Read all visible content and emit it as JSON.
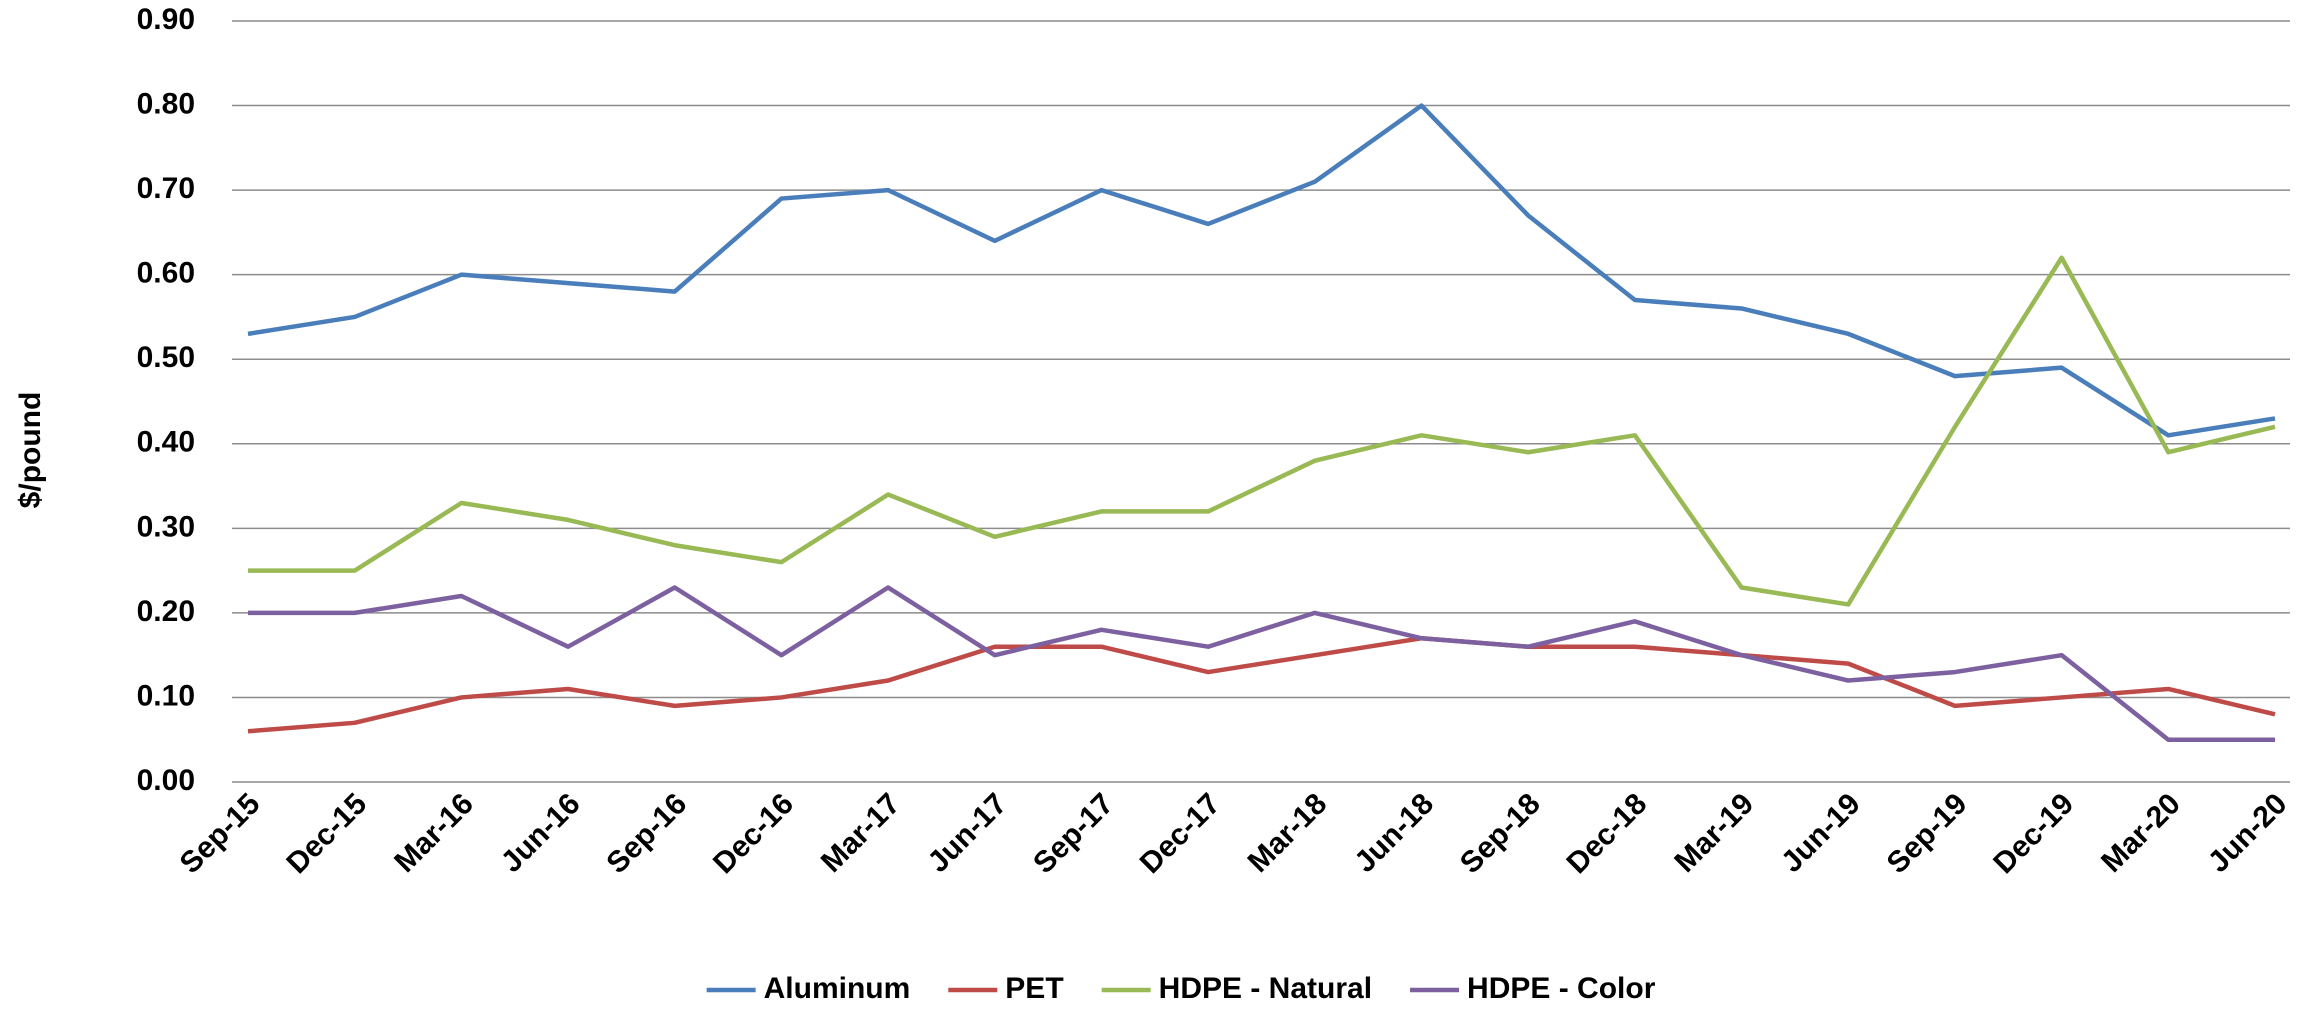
{
  "chart_data": {
    "type": "line",
    "y_label": "$/pound",
    "categories": [
      "Sep-15",
      "Dec-15",
      "Mar-16",
      "Jun-16",
      "Sep-16",
      "Dec-16",
      "Mar-17",
      "Jun-17",
      "Sep-17",
      "Dec-17",
      "Mar-18",
      "Jun-18",
      "Sep-18",
      "Dec-18",
      "Mar-19",
      "Jun-19",
      "Sep-19",
      "Dec-19",
      "Mar-20",
      "Jun-20"
    ],
    "series": [
      {
        "name": "Aluminum",
        "color": "#4a7ebb",
        "values": [
          0.53,
          0.55,
          0.6,
          0.59,
          0.58,
          0.69,
          0.7,
          0.64,
          0.7,
          0.66,
          0.71,
          0.8,
          0.67,
          0.57,
          0.56,
          0.53,
          0.48,
          0.49,
          0.41,
          0.43
        ]
      },
      {
        "name": "PET",
        "color": "#be4b48",
        "values": [
          0.06,
          0.07,
          0.1,
          0.11,
          0.09,
          0.1,
          0.12,
          0.16,
          0.16,
          0.13,
          0.15,
          0.17,
          0.16,
          0.16,
          0.15,
          0.14,
          0.09,
          0.1,
          0.11,
          0.08
        ]
      },
      {
        "name": "HDPE - Natural",
        "color": "#98b954",
        "values": [
          0.25,
          0.25,
          0.33,
          0.31,
          0.28,
          0.26,
          0.34,
          0.29,
          0.32,
          0.32,
          0.38,
          0.41,
          0.39,
          0.41,
          0.23,
          0.21,
          0.42,
          0.62,
          0.39,
          0.42
        ]
      },
      {
        "name": "HDPE - Color",
        "color": "#7d60a0",
        "values": [
          0.2,
          0.2,
          0.22,
          0.16,
          0.23,
          0.15,
          0.23,
          0.15,
          0.18,
          0.16,
          0.2,
          0.17,
          0.16,
          0.19,
          0.15,
          0.12,
          0.13,
          0.15,
          0.05,
          0.05
        ]
      }
    ],
    "ylim": [
      0,
      0.9
    ],
    "yticks": [
      {
        "value": 0,
        "label": "0.00"
      },
      {
        "value": 0.1,
        "label": "0.10"
      },
      {
        "value": 0.2,
        "label": "0.20"
      },
      {
        "value": 0.3,
        "label": "0.30"
      },
      {
        "value": 0.4,
        "label": "0.40"
      },
      {
        "value": 0.5,
        "label": "0.50"
      },
      {
        "value": 0.6,
        "label": "0.60"
      },
      {
        "value": 0.7,
        "label": "0.70"
      },
      {
        "value": 0.8,
        "label": "0.80"
      },
      {
        "value": 0.9,
        "label": "0.90"
      }
    ],
    "grid": true,
    "legend": "bottom"
  }
}
